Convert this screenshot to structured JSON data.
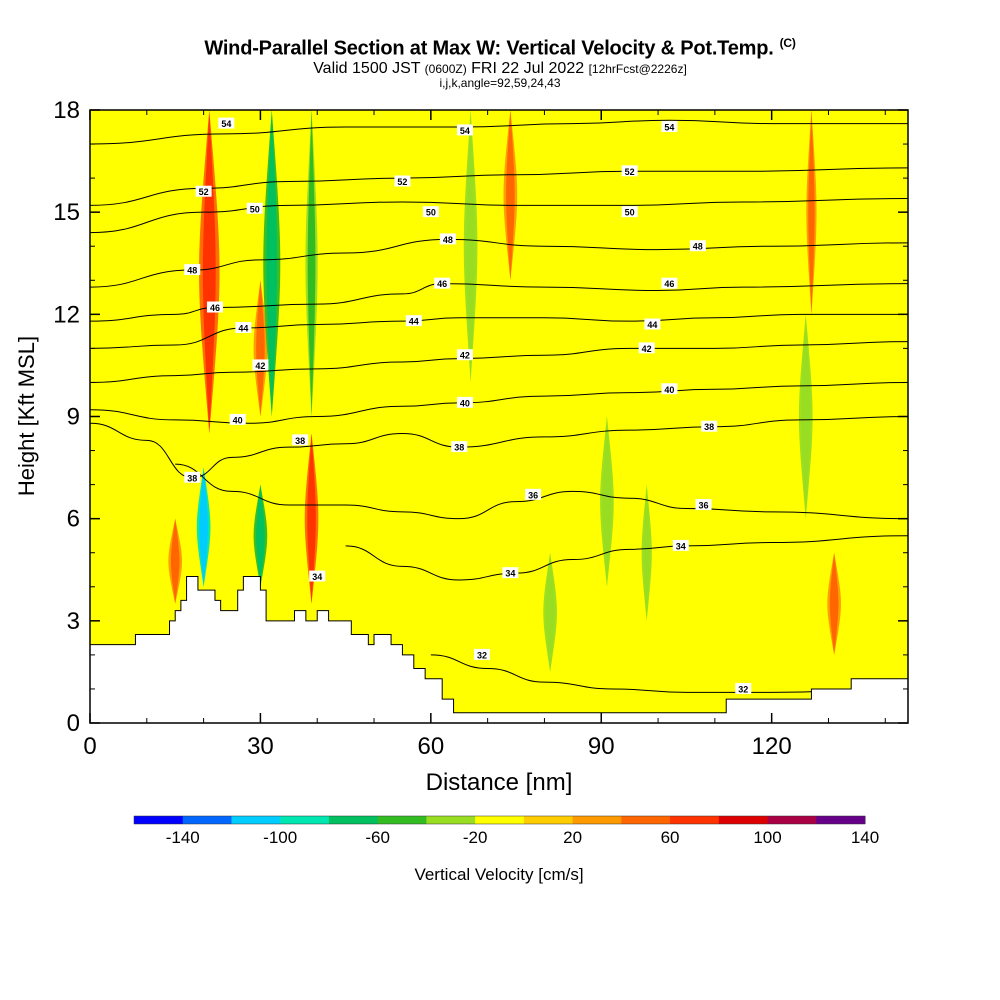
{
  "title": {
    "main": "Wind-Parallel Section at Max W: Vertical Velocity & Pot.Temp.",
    "copyright": "(C)",
    "valid_a": "Valid 1500 JST",
    "valid_b": "(0600Z)",
    "valid_c": "FRI 22 Jul 2022",
    "valid_d": "[12hrFcst@2226z]",
    "indices": "i,j,k,angle=92,59,24,43"
  },
  "chart_data": {
    "type": "contour",
    "xlabel": "Distance [nm]",
    "ylabel": "Height [Kft MSL]",
    "xlim": [
      0,
      144
    ],
    "ylim": [
      0,
      18
    ],
    "x_ticks": [
      0,
      30,
      60,
      90,
      120
    ],
    "y_ticks": [
      0,
      3,
      6,
      9,
      12,
      15,
      18
    ],
    "shaded_field": "Vertical Velocity",
    "shaded_units": "cm/s",
    "colorbar": {
      "label": "Vertical Velocity [cm/s]",
      "tick_labels": [
        "-140",
        "-100",
        "-60",
        "-20",
        "20",
        "60",
        "100",
        "140"
      ],
      "colors": [
        "#0000ff",
        "#0066ff",
        "#00ccff",
        "#00e6b0",
        "#00c060",
        "#33bb22",
        "#99dd22",
        "#ffff00",
        "#ffcc00",
        "#ff9900",
        "#ff6600",
        "#ff3300",
        "#dd0000",
        "#aa0044",
        "#660088"
      ]
    },
    "contour_field": "Potential Temperature",
    "contour_levels": [
      32,
      34,
      36,
      38,
      40,
      42,
      44,
      46,
      48,
      50,
      52,
      54
    ],
    "isentropes": [
      {
        "level": 32,
        "points": [
          [
            60,
            2.0
          ],
          [
            70,
            1.6
          ],
          [
            80,
            1.2
          ],
          [
            92,
            1.0
          ],
          [
            105,
            0.9
          ],
          [
            120,
            0.9
          ],
          [
            144,
            1.0
          ]
        ]
      },
      {
        "level": 34,
        "points": [
          [
            45,
            5.2
          ],
          [
            55,
            4.6
          ],
          [
            65,
            4.2
          ],
          [
            75,
            4.4
          ],
          [
            85,
            4.8
          ],
          [
            95,
            5.1
          ],
          [
            105,
            5.2
          ],
          [
            120,
            5.3
          ],
          [
            144,
            5.5
          ]
        ]
      },
      {
        "level": 36,
        "points": [
          [
            15,
            7.6
          ],
          [
            25,
            6.8
          ],
          [
            35,
            6.4
          ],
          [
            45,
            6.4
          ],
          [
            55,
            6.2
          ],
          [
            65,
            6.0
          ],
          [
            75,
            6.5
          ],
          [
            85,
            6.8
          ],
          [
            95,
            6.6
          ],
          [
            105,
            6.3
          ],
          [
            120,
            6.2
          ],
          [
            144,
            6.0
          ]
        ]
      },
      {
        "level": 38,
        "points": [
          [
            0,
            8.8
          ],
          [
            10,
            8.3
          ],
          [
            18,
            7.2
          ],
          [
            25,
            7.8
          ],
          [
            35,
            8.1
          ],
          [
            45,
            8.2
          ],
          [
            55,
            8.5
          ],
          [
            65,
            8.1
          ],
          [
            80,
            8.4
          ],
          [
            95,
            8.6
          ],
          [
            110,
            8.7
          ],
          [
            125,
            8.9
          ],
          [
            144,
            9.0
          ]
        ]
      },
      {
        "level": 40,
        "points": [
          [
            0,
            9.2
          ],
          [
            15,
            8.9
          ],
          [
            28,
            8.8
          ],
          [
            40,
            9.0
          ],
          [
            55,
            9.3
          ],
          [
            65,
            9.4
          ],
          [
            80,
            9.6
          ],
          [
            95,
            9.7
          ],
          [
            110,
            9.8
          ],
          [
            125,
            9.9
          ],
          [
            144,
            10.0
          ]
        ]
      },
      {
        "level": 42,
        "points": [
          [
            0,
            10.0
          ],
          [
            15,
            10.2
          ],
          [
            25,
            10.3
          ],
          [
            40,
            10.4
          ],
          [
            55,
            10.6
          ],
          [
            65,
            10.7
          ],
          [
            80,
            10.8
          ],
          [
            95,
            11.0
          ],
          [
            110,
            11.0
          ],
          [
            125,
            11.1
          ],
          [
            144,
            11.2
          ]
        ]
      },
      {
        "level": 44,
        "points": [
          [
            0,
            11.0
          ],
          [
            15,
            11.1
          ],
          [
            27,
            11.6
          ],
          [
            40,
            11.7
          ],
          [
            55,
            11.8
          ],
          [
            65,
            11.9
          ],
          [
            80,
            11.9
          ],
          [
            95,
            11.8
          ],
          [
            110,
            11.9
          ],
          [
            125,
            12.0
          ],
          [
            144,
            12.0
          ]
        ]
      },
      {
        "level": 46,
        "points": [
          [
            0,
            11.8
          ],
          [
            15,
            12.0
          ],
          [
            22,
            12.2
          ],
          [
            40,
            12.3
          ],
          [
            55,
            12.6
          ],
          [
            62,
            12.9
          ],
          [
            80,
            12.8
          ],
          [
            100,
            12.7
          ],
          [
            115,
            12.8
          ],
          [
            144,
            12.9
          ]
        ]
      },
      {
        "level": 48,
        "points": [
          [
            0,
            12.8
          ],
          [
            18,
            13.3
          ],
          [
            30,
            13.6
          ],
          [
            45,
            13.8
          ],
          [
            63,
            14.2
          ],
          [
            80,
            14.0
          ],
          [
            100,
            13.9
          ],
          [
            120,
            14.0
          ],
          [
            144,
            14.1
          ]
        ]
      },
      {
        "level": 50,
        "points": [
          [
            0,
            14.4
          ],
          [
            20,
            15.0
          ],
          [
            35,
            15.2
          ],
          [
            55,
            15.3
          ],
          [
            75,
            15.2
          ],
          [
            95,
            15.2
          ],
          [
            115,
            15.3
          ],
          [
            144,
            15.4
          ]
        ]
      },
      {
        "level": 52,
        "points": [
          [
            0,
            15.2
          ],
          [
            20,
            15.7
          ],
          [
            35,
            15.9
          ],
          [
            55,
            16.0
          ],
          [
            75,
            16.1
          ],
          [
            95,
            16.2
          ],
          [
            115,
            16.2
          ],
          [
            144,
            16.3
          ]
        ]
      },
      {
        "level": 54,
        "points": [
          [
            0,
            17.0
          ],
          [
            24,
            17.3
          ],
          [
            45,
            17.5
          ],
          [
            65,
            17.5
          ],
          [
            85,
            17.6
          ],
          [
            102,
            17.7
          ],
          [
            120,
            17.6
          ],
          [
            144,
            17.6
          ]
        ]
      }
    ],
    "isentrope_labels": [
      {
        "text": "54",
        "x": 24,
        "y": 17.6
      },
      {
        "text": "54",
        "x": 66,
        "y": 17.4
      },
      {
        "text": "54",
        "x": 102,
        "y": 17.5
      },
      {
        "text": "52",
        "x": 20,
        "y": 15.6
      },
      {
        "text": "52",
        "x": 55,
        "y": 15.9
      },
      {
        "text": "52",
        "x": 95,
        "y": 16.2
      },
      {
        "text": "50",
        "x": 29,
        "y": 15.1
      },
      {
        "text": "50",
        "x": 60,
        "y": 15.0
      },
      {
        "text": "50",
        "x": 95,
        "y": 15.0
      },
      {
        "text": "48",
        "x": 18,
        "y": 13.3
      },
      {
        "text": "48",
        "x": 63,
        "y": 14.2
      },
      {
        "text": "48",
        "x": 107,
        "y": 14.0
      },
      {
        "text": "46",
        "x": 22,
        "y": 12.2
      },
      {
        "text": "46",
        "x": 62,
        "y": 12.9
      },
      {
        "text": "46",
        "x": 102,
        "y": 12.9
      },
      {
        "text": "44",
        "x": 27,
        "y": 11.6
      },
      {
        "text": "44",
        "x": 57,
        "y": 11.8
      },
      {
        "text": "44",
        "x": 99,
        "y": 11.7
      },
      {
        "text": "42",
        "x": 30,
        "y": 10.5
      },
      {
        "text": "42",
        "x": 66,
        "y": 10.8
      },
      {
        "text": "42",
        "x": 98,
        "y": 11.0
      },
      {
        "text": "40",
        "x": 26,
        "y": 8.9
      },
      {
        "text": "40",
        "x": 66,
        "y": 9.4
      },
      {
        "text": "40",
        "x": 102,
        "y": 9.8
      },
      {
        "text": "38",
        "x": 18,
        "y": 7.2
      },
      {
        "text": "38",
        "x": 37,
        "y": 8.3
      },
      {
        "text": "38",
        "x": 65,
        "y": 8.1
      },
      {
        "text": "38",
        "x": 109,
        "y": 8.7
      },
      {
        "text": "36",
        "x": 78,
        "y": 6.7
      },
      {
        "text": "36",
        "x": 108,
        "y": 6.4
      },
      {
        "text": "34",
        "x": 104,
        "y": 5.2
      },
      {
        "text": "34",
        "x": 74,
        "y": 4.4
      },
      {
        "text": "34",
        "x": 40,
        "y": 4.3
      },
      {
        "text": "32",
        "x": 69,
        "y": 2.0
      },
      {
        "text": "32",
        "x": 115,
        "y": 1.0
      }
    ],
    "terrain_profile": [
      [
        0,
        2.3
      ],
      [
        8,
        2.3
      ],
      [
        8,
        2.6
      ],
      [
        14,
        2.6
      ],
      [
        14,
        3.0
      ],
      [
        15,
        3.0
      ],
      [
        15,
        3.3
      ],
      [
        16,
        3.3
      ],
      [
        16,
        3.6
      ],
      [
        17,
        3.6
      ],
      [
        17,
        4.3
      ],
      [
        19,
        4.3
      ],
      [
        19,
        3.9
      ],
      [
        22,
        3.9
      ],
      [
        22,
        3.6
      ],
      [
        23,
        3.6
      ],
      [
        23,
        3.3
      ],
      [
        26,
        3.3
      ],
      [
        26,
        3.9
      ],
      [
        27,
        3.9
      ],
      [
        27,
        4.3
      ],
      [
        30,
        4.3
      ],
      [
        30,
        3.9
      ],
      [
        31,
        3.9
      ],
      [
        31,
        3.0
      ],
      [
        36,
        3.0
      ],
      [
        36,
        3.3
      ],
      [
        38,
        3.3
      ],
      [
        38,
        3.0
      ],
      [
        40,
        3.0
      ],
      [
        40,
        3.3
      ],
      [
        42,
        3.3
      ],
      [
        42,
        3.0
      ],
      [
        46,
        3.0
      ],
      [
        46,
        2.6
      ],
      [
        49,
        2.6
      ],
      [
        49,
        2.3
      ],
      [
        50,
        2.3
      ],
      [
        50,
        2.6
      ],
      [
        53,
        2.6
      ],
      [
        53,
        2.3
      ],
      [
        55,
        2.3
      ],
      [
        55,
        2.0
      ],
      [
        57,
        2.0
      ],
      [
        57,
        1.6
      ],
      [
        59,
        1.6
      ],
      [
        59,
        1.3
      ],
      [
        62,
        1.3
      ],
      [
        62,
        0.7
      ],
      [
        64,
        0.7
      ],
      [
        64,
        0.3
      ],
      [
        112,
        0.3
      ],
      [
        112,
        0.7
      ],
      [
        127,
        0.7
      ],
      [
        127,
        1.0
      ],
      [
        134,
        1.0
      ],
      [
        134,
        1.3
      ],
      [
        144,
        1.3
      ]
    ],
    "updrafts": [
      {
        "x": 21,
        "y0": 8.5,
        "y1": 18,
        "w": 60,
        "width": 3
      },
      {
        "x": 39,
        "y0": 3.5,
        "y1": 8.5,
        "w": 60,
        "width": 2
      },
      {
        "x": 74,
        "y0": 13,
        "y1": 18,
        "w": 40,
        "width": 2
      },
      {
        "x": 127,
        "y0": 12,
        "y1": 18,
        "w": 40,
        "width": 1.5
      },
      {
        "x": 30,
        "y0": 9,
        "y1": 13,
        "w": 40,
        "width": 2
      },
      {
        "x": 15,
        "y0": 3.5,
        "y1": 6,
        "w": 40,
        "width": 2
      },
      {
        "x": 131,
        "y0": 2,
        "y1": 5,
        "w": 40,
        "width": 2
      }
    ],
    "downdrafts": [
      {
        "x": 32,
        "y0": 9,
        "y1": 18,
        "w": -80,
        "width": 2.5
      },
      {
        "x": 39,
        "y0": 9,
        "y1": 18,
        "w": -60,
        "width": 1.8
      },
      {
        "x": 20,
        "y0": 4,
        "y1": 7.5,
        "w": -110,
        "width": 2
      },
      {
        "x": 30,
        "y0": 4,
        "y1": 7,
        "w": -80,
        "width": 2
      },
      {
        "x": 67,
        "y0": 10,
        "y1": 18,
        "w": -30,
        "width": 2
      },
      {
        "x": 126,
        "y0": 6,
        "y1": 12,
        "w": -30,
        "width": 2
      },
      {
        "x": 91,
        "y0": 4,
        "y1": 9,
        "w": -25,
        "width": 2
      },
      {
        "x": 81,
        "y0": 1.5,
        "y1": 5,
        "w": -25,
        "width": 2
      },
      {
        "x": 98,
        "y0": 3,
        "y1": 7,
        "w": -25,
        "width": 1.5
      }
    ]
  }
}
